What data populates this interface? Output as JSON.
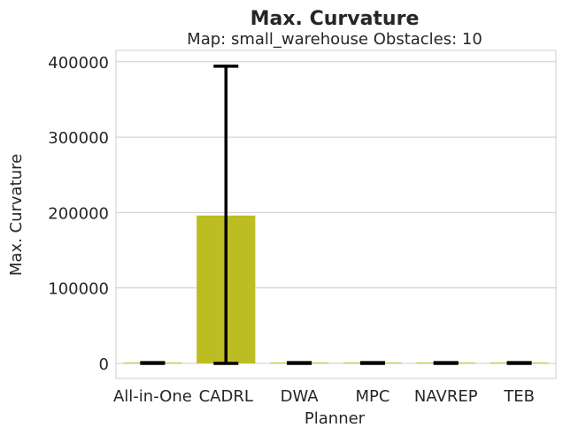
{
  "chart_data": {
    "type": "bar",
    "title": "Max. Curvature",
    "subtitle": "Map: small_warehouse Obstacles: 10",
    "xlabel": "Planner",
    "ylabel": "Max. Curvature",
    "categories": [
      "All-in-One",
      "CADRL",
      "DWA",
      "MPC",
      "NAVREP",
      "TEB"
    ],
    "values": [
      1000,
      196000,
      1000,
      1000,
      1000,
      1000
    ],
    "error_low": [
      0,
      0,
      0,
      0,
      0,
      0
    ],
    "error_high": [
      1000,
      394000,
      1000,
      1000,
      1000,
      1000
    ],
    "ylim": [
      -20000,
      415000
    ],
    "yticks": [
      0,
      100000,
      200000,
      300000,
      400000
    ],
    "grid": "horizontal",
    "colors": {
      "bar": "#bcbd22",
      "errorbar": "#000000",
      "grid": "#cccccc",
      "spine": "#cccccc"
    }
  }
}
